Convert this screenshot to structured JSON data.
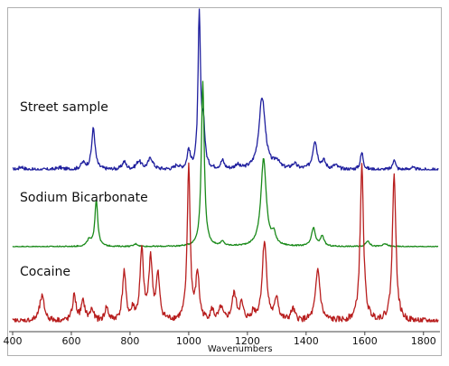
{
  "chart_data": {
    "type": "line",
    "title": "",
    "xlabel": "Wavenumbers",
    "ylabel": "",
    "xlim": [
      400,
      1850
    ],
    "xticks": [
      400,
      600,
      800,
      1000,
      1200,
      1400,
      1600,
      1800
    ],
    "grid": false,
    "legend": "none",
    "series": [
      {
        "name": "Street sample",
        "color": "#1f1f9e",
        "baseline": 0,
        "noise": 0.35,
        "peaks": [
          [
            430,
            0.6,
            10
          ],
          [
            560,
            0.4,
            12
          ],
          [
            640,
            1.2,
            10
          ],
          [
            675,
            8.0,
            7
          ],
          [
            780,
            1.5,
            8
          ],
          [
            830,
            1.6,
            10
          ],
          [
            870,
            2.2,
            10
          ],
          [
            960,
            0.8,
            8
          ],
          [
            1000,
            3.6,
            6
          ],
          [
            1036,
            30.0,
            5
          ],
          [
            1050,
            8.0,
            6
          ],
          [
            1115,
            1.6,
            7
          ],
          [
            1165,
            0.8,
            8
          ],
          [
            1250,
            14.0,
            13
          ],
          [
            1300,
            1.5,
            10
          ],
          [
            1360,
            1.0,
            10
          ],
          [
            1430,
            5.5,
            9
          ],
          [
            1460,
            1.5,
            8
          ],
          [
            1500,
            0.8,
            10
          ],
          [
            1590,
            3.3,
            6
          ],
          [
            1700,
            2.2,
            5
          ],
          [
            1760,
            0.4,
            10
          ]
        ]
      },
      {
        "name": "Sodium Bicarbonate",
        "color": "#1a8a1a",
        "baseline": 0,
        "noise": 0.12,
        "peaks": [
          [
            660,
            1.2,
            8
          ],
          [
            685,
            9.0,
            6
          ],
          [
            820,
            0.5,
            8
          ],
          [
            1048,
            32.0,
            6
          ],
          [
            1115,
            0.8,
            7
          ],
          [
            1255,
            17.0,
            11
          ],
          [
            1290,
            2.0,
            8
          ],
          [
            1425,
            3.5,
            8
          ],
          [
            1455,
            2.0,
            7
          ],
          [
            1610,
            1.1,
            8
          ],
          [
            1670,
            0.5,
            10
          ]
        ]
      },
      {
        "name": "Cocaine",
        "color": "#b81e1e",
        "baseline": 0,
        "noise": 0.6,
        "peaks": [
          [
            500,
            4.8,
            10
          ],
          [
            610,
            5.0,
            7
          ],
          [
            640,
            3.6,
            8
          ],
          [
            670,
            2.2,
            7
          ],
          [
            720,
            2.6,
            7
          ],
          [
            780,
            9.5,
            7
          ],
          [
            810,
            2.0,
            6
          ],
          [
            840,
            13.5,
            7
          ],
          [
            870,
            12.0,
            7
          ],
          [
            895,
            8.5,
            7
          ],
          [
            1000,
            30.0,
            6
          ],
          [
            1030,
            9.0,
            7
          ],
          [
            1080,
            2.0,
            7
          ],
          [
            1110,
            2.5,
            7
          ],
          [
            1155,
            5.2,
            9
          ],
          [
            1180,
            3.0,
            7
          ],
          [
            1220,
            1.5,
            7
          ],
          [
            1258,
            15.5,
            9
          ],
          [
            1300,
            4.5,
            7
          ],
          [
            1355,
            2.2,
            8
          ],
          [
            1440,
            10.0,
            9
          ],
          [
            1590,
            30.0,
            7
          ],
          [
            1700,
            29.0,
            7
          ]
        ]
      }
    ]
  }
}
